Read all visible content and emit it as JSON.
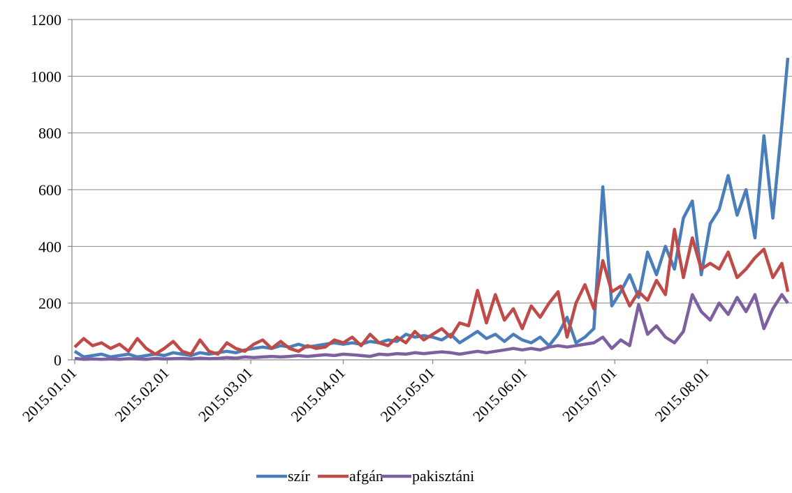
{
  "chart_data": {
    "type": "line",
    "x": [
      "2015.01.01",
      "2015.01.04",
      "2015.01.07",
      "2015.01.10",
      "2015.01.13",
      "2015.01.16",
      "2015.01.19",
      "2015.01.22",
      "2015.01.25",
      "2015.01.28",
      "2015.01.31",
      "2015.02.03",
      "2015.02.06",
      "2015.02.09",
      "2015.02.12",
      "2015.02.15",
      "2015.02.18",
      "2015.02.21",
      "2015.02.24",
      "2015.02.27",
      "2015.03.02",
      "2015.03.05",
      "2015.03.08",
      "2015.03.11",
      "2015.03.14",
      "2015.03.17",
      "2015.03.20",
      "2015.03.23",
      "2015.03.26",
      "2015.03.29",
      "2015.04.01",
      "2015.04.04",
      "2015.04.07",
      "2015.04.10",
      "2015.04.13",
      "2015.04.16",
      "2015.04.19",
      "2015.04.22",
      "2015.04.25",
      "2015.04.28",
      "2015.05.01",
      "2015.05.04",
      "2015.05.07",
      "2015.05.10",
      "2015.05.13",
      "2015.05.16",
      "2015.05.19",
      "2015.05.22",
      "2015.05.25",
      "2015.05.28",
      "2015.05.31",
      "2015.06.03",
      "2015.06.06",
      "2015.06.09",
      "2015.06.12",
      "2015.06.15",
      "2015.06.18",
      "2015.06.21",
      "2015.06.24",
      "2015.06.27",
      "2015.06.30",
      "2015.07.03",
      "2015.07.06",
      "2015.07.09",
      "2015.07.12",
      "2015.07.15",
      "2015.07.18",
      "2015.07.21",
      "2015.07.24",
      "2015.07.27",
      "2015.07.30",
      "2015.08.02",
      "2015.08.05",
      "2015.08.08",
      "2015.08.11",
      "2015.08.14",
      "2015.08.17",
      "2015.08.20",
      "2015.08.23",
      "2015.08.26",
      "2015.08.28"
    ],
    "series": [
      {
        "name": "szír",
        "color": "#4a7ebb",
        "values": [
          30,
          10,
          15,
          20,
          10,
          15,
          20,
          10,
          15,
          20,
          15,
          25,
          20,
          15,
          25,
          20,
          25,
          30,
          25,
          35,
          40,
          45,
          40,
          50,
          45,
          55,
          45,
          50,
          55,
          60,
          55,
          60,
          55,
          65,
          60,
          70,
          65,
          90,
          80,
          85,
          80,
          70,
          90,
          60,
          80,
          100,
          75,
          90,
          65,
          90,
          70,
          60,
          80,
          50,
          90,
          150,
          60,
          80,
          110,
          610,
          190,
          240,
          300,
          220,
          380,
          300,
          400,
          320,
          500,
          560,
          300,
          480,
          530,
          650,
          510,
          600,
          430,
          790,
          500,
          830,
          1065
        ]
      },
      {
        "name": "afgán",
        "color": "#be4b48",
        "values": [
          45,
          75,
          50,
          60,
          40,
          55,
          30,
          75,
          40,
          20,
          40,
          65,
          30,
          20,
          70,
          30,
          20,
          60,
          40,
          30,
          55,
          70,
          40,
          65,
          40,
          30,
          50,
          40,
          45,
          70,
          60,
          80,
          50,
          90,
          60,
          50,
          80,
          60,
          100,
          70,
          90,
          110,
          80,
          130,
          120,
          245,
          130,
          230,
          140,
          180,
          110,
          190,
          150,
          200,
          240,
          80,
          200,
          265,
          180,
          350,
          240,
          260,
          190,
          240,
          210,
          280,
          230,
          460,
          290,
          430,
          320,
          340,
          320,
          380,
          290,
          320,
          360,
          390,
          290,
          340,
          240
        ]
      },
      {
        "name": "pakisztáni",
        "color": "#7d60a0",
        "values": [
          5,
          2,
          3,
          2,
          3,
          2,
          4,
          3,
          2,
          5,
          3,
          4,
          5,
          3,
          6,
          4,
          5,
          8,
          6,
          10,
          8,
          10,
          12,
          10,
          12,
          15,
          12,
          15,
          18,
          15,
          20,
          18,
          15,
          12,
          20,
          18,
          22,
          20,
          25,
          22,
          25,
          28,
          25,
          20,
          25,
          30,
          25,
          30,
          35,
          40,
          35,
          40,
          35,
          45,
          50,
          45,
          50,
          55,
          60,
          80,
          40,
          70,
          50,
          195,
          90,
          120,
          80,
          60,
          100,
          230,
          170,
          140,
          200,
          160,
          220,
          170,
          230,
          110,
          180,
          230,
          200
        ]
      }
    ],
    "xlim": [
      "2015.01.01",
      "2015.08.28"
    ],
    "xticks": [
      "2015.01.01",
      "2015.02.01",
      "2015.03.01",
      "2015.04.01",
      "2015.05.01",
      "2015.06.01",
      "2015.07.01",
      "2015.08.01"
    ],
    "ylim": [
      0,
      1200
    ],
    "yticks": [
      0,
      200,
      400,
      600,
      800,
      1000,
      1200
    ],
    "grid": true,
    "legend": "bottom"
  }
}
